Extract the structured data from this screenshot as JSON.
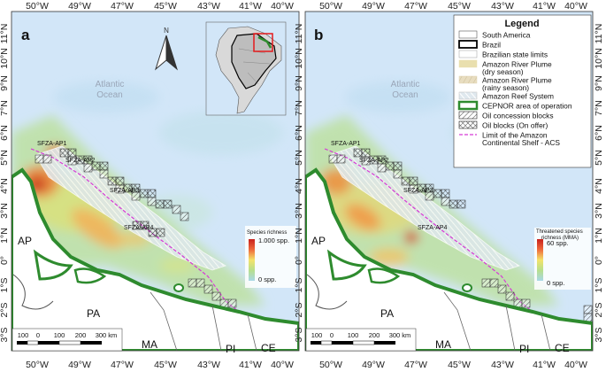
{
  "panels": [
    {
      "letter": "a",
      "colorbar": {
        "title_line1": "Species richness",
        "title_line2": "",
        "max": "1.000 spp.",
        "min": "0 spp."
      }
    },
    {
      "letter": "b",
      "colorbar": {
        "title_line1": "Threatened species",
        "title_line2": "richness (MMA)",
        "max": "60 spp.",
        "min": "0 spp."
      }
    }
  ],
  "lon_ticks_top": [
    "50°W",
    "49°W",
    "47°W",
    "45°W",
    "43°W",
    "41°W",
    "40°W"
  ],
  "lon_ticks_bottom": [
    "50°W",
    "49°W",
    "47°W",
    "45°W",
    "43°W",
    "41°W",
    "40°W"
  ],
  "lat_ticks": [
    "11°N",
    "10°N",
    "9°N",
    "7°N",
    "6°N",
    "5°N",
    "4°N",
    "3°N",
    "1°N",
    "0°",
    "1°S",
    "2°S",
    "3°S"
  ],
  "ocean_label": [
    "Atlantic",
    "Ocean"
  ],
  "areas": [
    "SFZA-AP1",
    "SFZA-AP2",
    "SFZA-AP3",
    "SFZA-AP4"
  ],
  "states": [
    "AP",
    "PA",
    "MA",
    "PI",
    "CE"
  ],
  "north_label": "N",
  "scale_labels": [
    "100",
    "0",
    "100",
    "200",
    "300 km"
  ],
  "legend": {
    "title": "Legend",
    "items": [
      {
        "label": "South America",
        "swatch": "sa"
      },
      {
        "label": "Brazil",
        "swatch": "brazil"
      },
      {
        "label": "Brazilian state limits",
        "swatch": "states"
      },
      {
        "label": "Amazon River Plume",
        "label2": "(dry season)",
        "swatch": "dry"
      },
      {
        "label": "Amazon River Plume",
        "label2": "(rainy season)",
        "swatch": "rainy"
      },
      {
        "label": "Amazon Reef System",
        "swatch": "reef"
      },
      {
        "label": "CEPNOR area of operation",
        "swatch": "cepnor"
      },
      {
        "label": "Oil concession blocks",
        "swatch": "concession"
      },
      {
        "label": "Oil blocks (On offer)",
        "swatch": "offer"
      },
      {
        "label": "Limit of the Amazon",
        "label2": "Continental Shelf - ACS",
        "swatch": "acs"
      }
    ]
  },
  "colors": {
    "ocean": "#cfe4f7",
    "land": "#ffffff",
    "coast": "#2e8b2e",
    "plume": "#e9dfae",
    "acs": "#d63ad6",
    "colorbar_high": "#d7301f",
    "colorbar_mid": "#f3e46a",
    "colorbar_low": "#9fd4a8"
  }
}
